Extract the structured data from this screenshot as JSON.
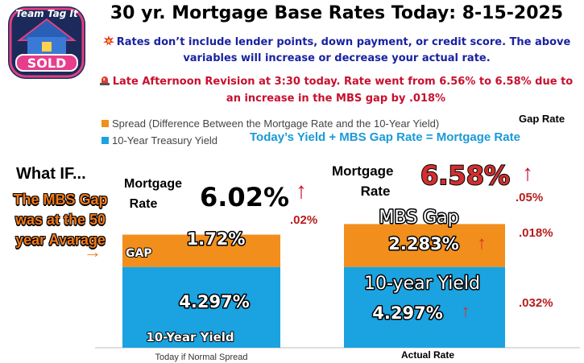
{
  "logo": {
    "text_top": "Team Tag It",
    "text_bottom": "SOLD"
  },
  "title": "30 yr. Mortgage Base Rates Today: 8-15-2025",
  "note_rates": "Rates don’t include lender points, down payment, or credit score. The above variables will increase or decrease your actual rate.",
  "note_revision": "Late Afternoon Revision at 3:30 today. Rate went from 6.56% to 6.58% due to an increase in the MBS gap by .018%",
  "gap_rate_heading": "Gap Rate",
  "equation": "Today’s  Yield +  MBS Gap Rate = Mortgage Rate",
  "what_if": "What IF...",
  "mbs_note": "The MBS Gap was at the 50 year Avarage",
  "colors": {
    "spread": "#f28e1c",
    "yield": "#1aa3e0",
    "title_blue": "#1a22a0",
    "alert_red": "#c8102e",
    "change_red": "#b71c1c"
  },
  "chart_data": {
    "type": "bar",
    "stacked": true,
    "categories": [
      "Today if Normal Spread",
      "Actual Rate"
    ],
    "series": [
      {
        "name": "10-Year Treasury Yield",
        "values": [
          4.297,
          4.297
        ]
      },
      {
        "name": "Spread (Difference Between the Mortgage Rate and the 10-Year Yield)",
        "values": [
          1.72,
          2.283
        ]
      }
    ],
    "legend": [
      "Spread (Difference Between the Mortgage Rate and the 10-Year Yield)",
      "10-Year Treasury Yield"
    ],
    "ylim": [
      0,
      7.5
    ],
    "grid": false,
    "bar_labels": {
      "left": {
        "gap_tag": "GAP",
        "gap_value": "1.72%",
        "yield_value": "4.297%",
        "yield_tag": "10-Year Yield",
        "rate_label": "Mortgage Rate",
        "rate_value": "6.02%",
        "rate_change": ".02%"
      },
      "right": {
        "gap_tag": "MBS Gap",
        "gap_value": "2.283%",
        "yield_tag": "10-year Yield",
        "yield_value": "4.297%",
        "rate_label": "Mortgage Rate",
        "rate_value": "6.58%",
        "rate_change": ".05%",
        "gap_change": ".018%",
        "yield_change": ".032%"
      }
    }
  }
}
